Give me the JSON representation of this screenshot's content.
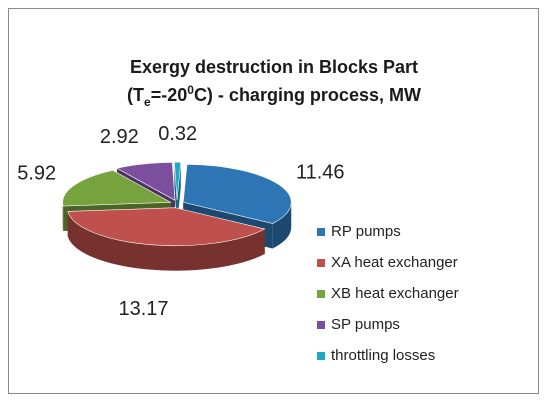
{
  "chart_data": {
    "type": "pie",
    "title_line1": "Exergy destruction in Blocks Part",
    "title_line2": {
      "open": "(T",
      "sub": "e",
      "mid": "=-20",
      "sup": "0",
      "close": "C) - charging process, MW"
    },
    "slices": [
      {
        "name": "RP pumps",
        "value": 11.46,
        "label": "11.46",
        "color": "#2e75b6"
      },
      {
        "name": "XA heat exchanger",
        "value": 13.17,
        "label": "13.17",
        "color": "#c0504d"
      },
      {
        "name": "XB heat exchanger",
        "value": 5.92,
        "label": "5.92",
        "color": "#77a33e"
      },
      {
        "name": "SP pumps",
        "value": 2.92,
        "label": "2.92",
        "color": "#7b4f9d"
      },
      {
        "name": "throttling losses",
        "value": 0.32,
        "label": "0.32",
        "color": "#1fa8c4"
      }
    ],
    "legend_position": "right"
  }
}
